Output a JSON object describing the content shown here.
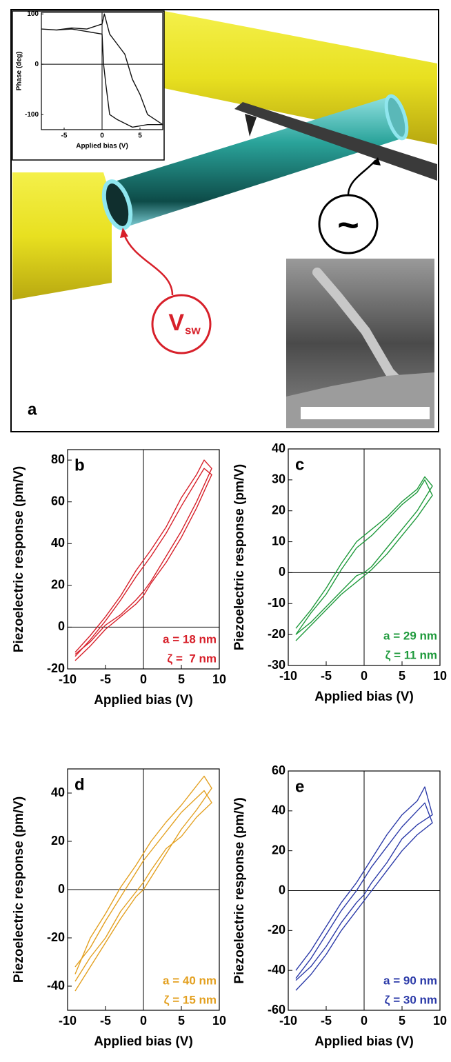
{
  "illustration": {
    "panel_label": "a",
    "source_symbol": "V",
    "source_subscript": "sw",
    "ac_symbol": "~"
  },
  "chart_data": [
    {
      "type": "line",
      "x_label": "Applied bias (V)",
      "y_label": "Phase (deg)",
      "zero_lines": true,
      "xlim": [
        -8,
        8
      ],
      "xticks": [
        -5,
        0,
        5
      ],
      "ylim": [
        -130,
        103
      ],
      "yticks": [
        -100,
        0,
        100
      ],
      "x": [
        -8,
        -6,
        -4,
        -2,
        -1,
        0,
        0.3,
        1,
        2,
        3,
        4,
        5,
        6,
        8,
        6,
        4,
        2,
        1,
        0.5,
        0.2,
        0,
        -2,
        -4,
        -6,
        -8
      ],
      "series": [
        {
          "color": "#111111",
          "values": [
            70,
            68,
            72,
            70,
            75,
            80,
            100,
            60,
            40,
            20,
            -30,
            -60,
            -100,
            -120,
            -120,
            -125,
            -110,
            -100,
            -40,
            0,
            60,
            65,
            70,
            68,
            70
          ]
        }
      ]
    },
    {
      "type": "line",
      "panel_label": "b",
      "x_label": "Applied bias (V)",
      "y_label": "Piezoelectric response (pm/V)",
      "zero_lines": true,
      "xlim": [
        -10,
        10
      ],
      "xticks": [
        -10,
        -5,
        0,
        5,
        10
      ],
      "ylim": [
        -20,
        85
      ],
      "yticks": [
        -20,
        0,
        20,
        40,
        60,
        80
      ],
      "annotations": [
        "a = 18 nm",
        "ζ =  7 nm"
      ],
      "x": [
        -9,
        -7,
        -5,
        -3,
        -1,
        0,
        1,
        3,
        5,
        7,
        9,
        8,
        7,
        5,
        3,
        1,
        0,
        -1,
        -3,
        -5,
        -7,
        -9
      ],
      "series": [
        {
          "color": "#d7202a",
          "values": [
            -13,
            -7,
            1,
            6,
            13,
            17,
            22,
            34,
            46,
            60,
            76,
            80,
            73,
            62,
            48,
            37,
            32,
            27,
            15,
            5,
            -4,
            -12
          ]
        },
        {
          "color": "#d7202a",
          "values": [
            -16,
            -9,
            -1,
            5,
            11,
            15,
            21,
            31,
            43,
            57,
            73,
            76,
            70,
            58,
            45,
            34,
            29,
            24,
            13,
            3,
            -6,
            -14
          ]
        }
      ]
    },
    {
      "type": "line",
      "panel_label": "c",
      "x_label": "Applied bias (V)",
      "y_label": "Piezoelectric response (pm/V)",
      "zero_lines": true,
      "xlim": [
        -10,
        10
      ],
      "xticks": [
        -10,
        -5,
        0,
        5,
        10
      ],
      "ylim": [
        -30,
        40
      ],
      "yticks": [
        -30,
        -20,
        -10,
        0,
        10,
        20,
        30,
        40
      ],
      "annotations": [
        "a = 29 nm",
        "ζ = 11 nm"
      ],
      "x": [
        -9,
        -7,
        -5,
        -3,
        -1,
        0,
        1,
        3,
        5,
        7,
        9,
        8,
        7,
        5,
        3,
        1,
        0,
        -1,
        -3,
        -5,
        -7,
        -9
      ],
      "series": [
        {
          "color": "#1f9a3c",
          "values": [
            -20,
            -16,
            -11,
            -6,
            -1,
            0,
            2,
            8,
            14,
            20,
            28,
            31,
            27,
            23,
            18,
            14,
            12,
            10,
            3,
            -5,
            -12,
            -18
          ]
        },
        {
          "color": "#1f9a3c",
          "values": [
            -22,
            -17,
            -12,
            -7,
            -3,
            -1,
            1,
            6,
            12,
            18,
            25,
            30,
            26,
            22,
            17,
            12,
            10,
            8,
            1,
            -7,
            -13,
            -20
          ]
        }
      ]
    },
    {
      "type": "line",
      "panel_label": "d",
      "x_label": "Applied bias (V)",
      "y_label": "Piezoelectric response (pm/V)",
      "zero_lines": true,
      "xlim": [
        -10,
        10
      ],
      "xticks": [
        -10,
        -5,
        0,
        5,
        10
      ],
      "ylim": [
        -50,
        50
      ],
      "yticks": [
        -40,
        -20,
        0,
        20,
        40
      ],
      "annotations": [
        "a = 40 nm",
        "ζ = 15 nm"
      ],
      "x": [
        -9,
        -7,
        -5,
        -3,
        -1,
        0,
        1,
        3,
        5,
        7,
        9,
        8,
        7,
        5,
        3,
        1,
        0,
        -1,
        -3,
        -5,
        -7,
        -9
      ],
      "series": [
        {
          "color": "#e3a020",
          "values": [
            -42,
            -32,
            -22,
            -12,
            -3,
            0,
            5,
            15,
            25,
            33,
            42,
            47,
            43,
            35,
            28,
            20,
            15,
            10,
            1,
            -10,
            -20,
            -35
          ]
        },
        {
          "color": "#e3a020",
          "values": [
            -38,
            -28,
            -20,
            -9,
            -1,
            3,
            8,
            17,
            22,
            30,
            36,
            41,
            38,
            32,
            24,
            16,
            12,
            7,
            -3,
            -13,
            -24,
            -32
          ]
        }
      ]
    },
    {
      "type": "line",
      "panel_label": "e",
      "x_label": "Applied bias (V)",
      "y_label": "Piezoelectric response (pm/V)",
      "zero_lines": true,
      "xlim": [
        -10,
        10
      ],
      "xticks": [
        -10,
        -5,
        0,
        5,
        10
      ],
      "ylim": [
        -60,
        60
      ],
      "yticks": [
        -60,
        -40,
        -20,
        0,
        20,
        40,
        60
      ],
      "annotations": [
        "a = 90 nm",
        "ζ = 30 nm"
      ],
      "x": [
        -9,
        -7,
        -5,
        -3,
        -1,
        0,
        1,
        3,
        5,
        7,
        9,
        8,
        7,
        5,
        3,
        1,
        0,
        -1,
        -3,
        -5,
        -7,
        -9
      ],
      "series": [
        {
          "color": "#2b3aa8",
          "values": [
            -45,
            -38,
            -28,
            -16,
            -6,
            -2,
            4,
            14,
            26,
            33,
            38,
            52,
            45,
            38,
            28,
            16,
            10,
            4,
            -6,
            -18,
            -30,
            -40
          ]
        },
        {
          "color": "#2b3aa8",
          "values": [
            -50,
            -42,
            -32,
            -20,
            -10,
            -5,
            0,
            10,
            20,
            28,
            34,
            44,
            40,
            32,
            22,
            12,
            6,
            0,
            -10,
            -22,
            -34,
            -44
          ]
        }
      ]
    }
  ]
}
